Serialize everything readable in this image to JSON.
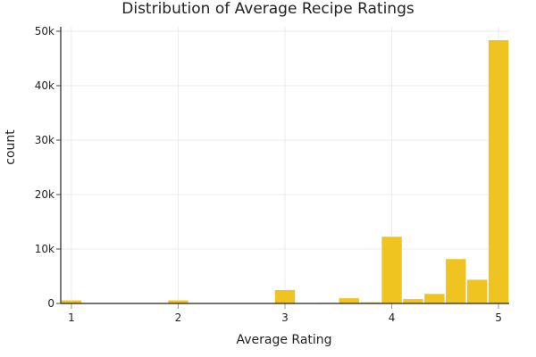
{
  "chart_data": {
    "type": "bar",
    "title": "Distribution of Average Recipe Ratings",
    "xlabel": "Average Rating",
    "ylabel": "count",
    "bin_size": 0.2,
    "categories": [
      1.0,
      1.2,
      1.4,
      1.6,
      1.8,
      2.0,
      2.2,
      2.4,
      2.6,
      2.8,
      3.0,
      3.2,
      3.4,
      3.6,
      3.8,
      4.0,
      4.2,
      4.4,
      4.6,
      4.8,
      5.0
    ],
    "values": [
      600,
      0,
      0,
      0,
      0,
      600,
      0,
      0,
      100,
      0,
      2500,
      0,
      150,
      1000,
      250,
      12300,
      850,
      1800,
      8200,
      4400,
      48400
    ],
    "xlim": [
      0.9,
      5.1
    ],
    "ylim": [
      0,
      50500
    ],
    "xticks": [
      "1",
      "2",
      "3",
      "4",
      "5"
    ],
    "yticks": [
      "0",
      "10k",
      "20k",
      "30k",
      "40k",
      "50k"
    ],
    "grid": true,
    "bar_color": "#f0c420"
  }
}
